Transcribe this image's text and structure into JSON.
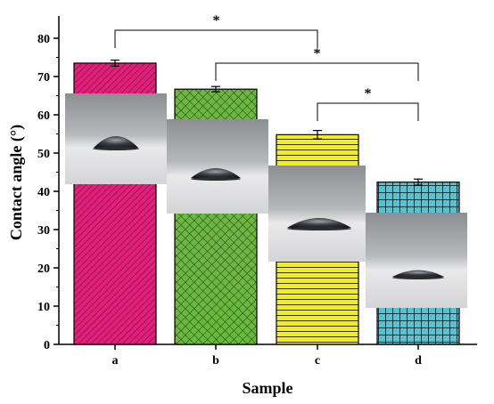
{
  "chart_data": {
    "type": "bar",
    "xlabel": "Sample",
    "ylabel": "Contact angle (°)",
    "categories": [
      "a",
      "b",
      "c",
      "d"
    ],
    "values": [
      73.5,
      66.7,
      54.8,
      42.4
    ],
    "errors": [
      0.8,
      0.7,
      1.1,
      0.8
    ],
    "ylim": [
      0,
      85
    ],
    "yticks": [
      0,
      10,
      20,
      30,
      40,
      50,
      60,
      70,
      80
    ],
    "bar_colors": [
      "#e0207a",
      "#6ab83f",
      "#f2ee1e",
      "#4fc7d2"
    ],
    "bar_patterns": [
      "diagonal-lines",
      "crosshatch",
      "horizontal-lines",
      "grid"
    ],
    "significance": [
      {
        "from": "a",
        "to": "c",
        "label": "*"
      },
      {
        "from": "b",
        "to": "d",
        "label": "*"
      },
      {
        "from": "c",
        "to": "d",
        "label": "*"
      }
    ],
    "inset_images": [
      "droplet-photo-a",
      "droplet-photo-b",
      "droplet-photo-c",
      "droplet-photo-d"
    ]
  }
}
